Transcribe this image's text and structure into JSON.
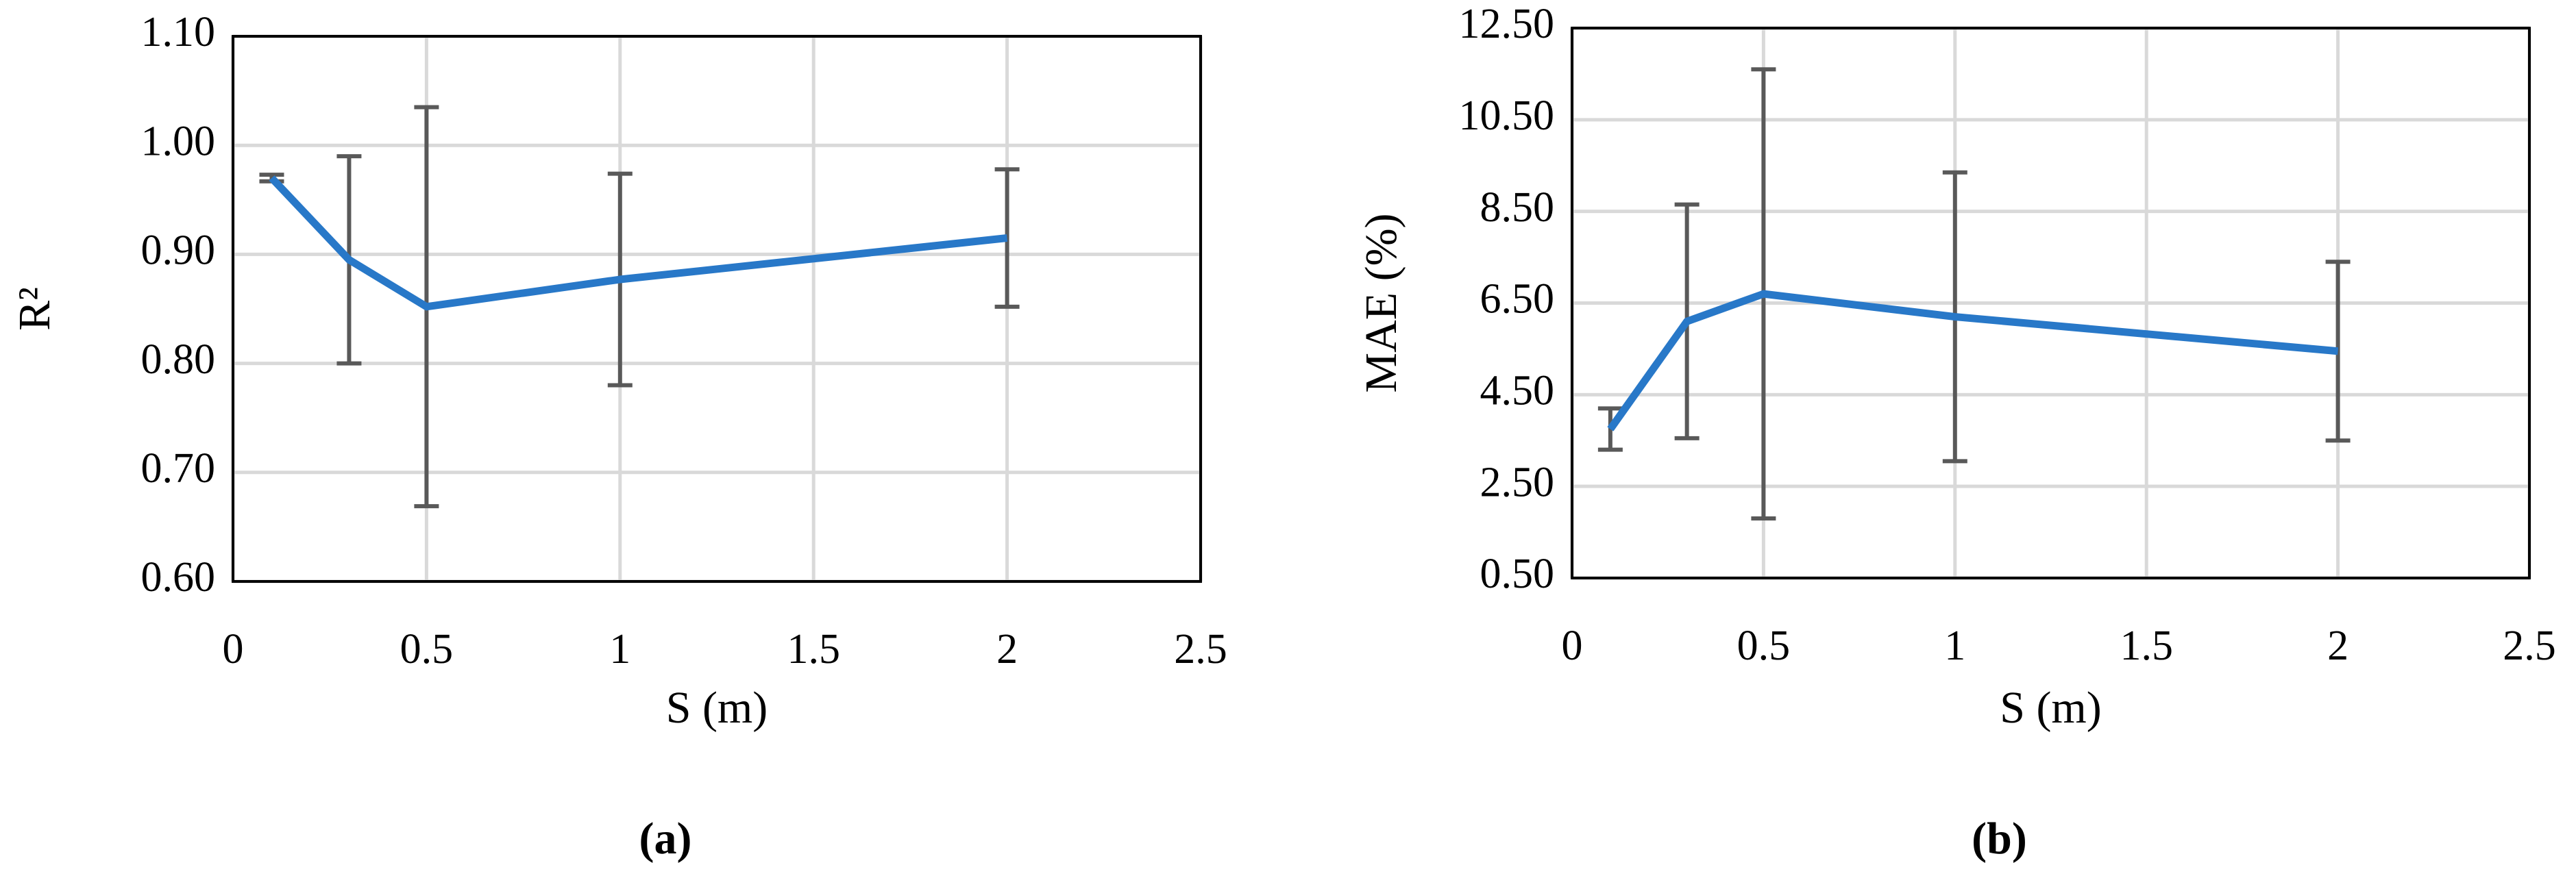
{
  "chart_data": [
    {
      "type": "line",
      "caption": "(a)",
      "x_label": "S (m)",
      "y_label": "R²",
      "x": [
        0.1,
        0.3,
        0.5,
        1,
        2
      ],
      "values": [
        0.97,
        0.895,
        0.852,
        0.877,
        0.915
      ],
      "errors": [
        0.003,
        0.095,
        0.183,
        0.097,
        0.063
      ],
      "color": "#2878c8",
      "error_color": "#595959",
      "xlim": [
        0,
        2.5
      ],
      "xticks": [
        0,
        0.5,
        1,
        1.5,
        2,
        2.5
      ],
      "ylim": [
        0.6,
        1.1
      ],
      "yticks": [
        {
          "value": 0.6,
          "label": "0.60"
        },
        {
          "value": 0.7,
          "label": "0.70"
        },
        {
          "value": 0.8,
          "label": "0.80"
        },
        {
          "value": 0.9,
          "label": "0.90"
        },
        {
          "value": 1.0,
          "label": "1.00"
        },
        {
          "value": 1.1,
          "label": "1.10"
        }
      ],
      "grid": true
    },
    {
      "type": "line",
      "caption": "(b)",
      "x_label": "S (m)",
      "y_label": "MAE (%)",
      "x": [
        0.1,
        0.3,
        0.5,
        1,
        2
      ],
      "values": [
        3.75,
        6.1,
        6.7,
        6.2,
        5.45
      ],
      "errors": [
        0.45,
        2.55,
        4.9,
        3.15,
        1.95
      ],
      "color": "#2878c8",
      "error_color": "#595959",
      "xlim": [
        0,
        2.5
      ],
      "xticks": [
        0,
        0.5,
        1,
        1.5,
        2,
        2.5
      ],
      "ylim": [
        0.5,
        12.5
      ],
      "yticks": [
        {
          "value": 0.5,
          "label": "0.50"
        },
        {
          "value": 2.5,
          "label": "2.50"
        },
        {
          "value": 4.5,
          "label": "4.50"
        },
        {
          "value": 6.5,
          "label": "6.50"
        },
        {
          "value": 8.5,
          "label": "8.50"
        },
        {
          "value": 10.5,
          "label": "10.50"
        },
        {
          "value": 12.5,
          "label": "12.50"
        }
      ],
      "grid": true
    }
  ]
}
